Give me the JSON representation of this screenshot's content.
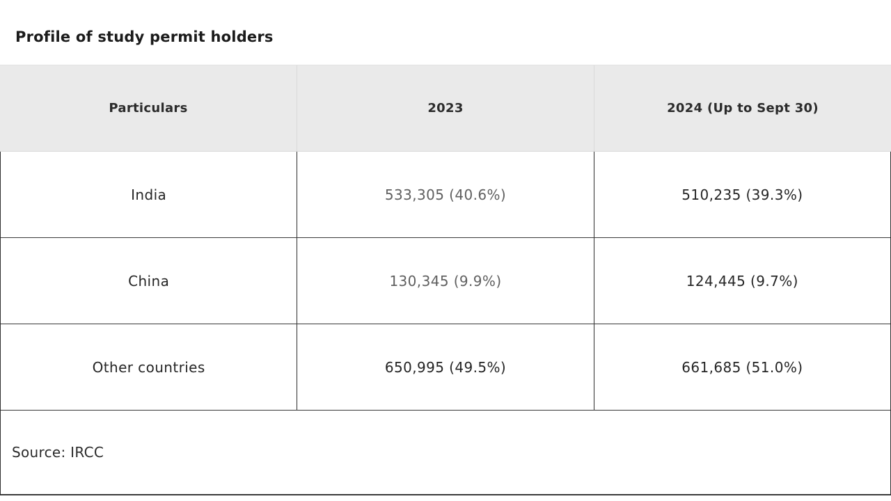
{
  "title": "Profile of study permit holders",
  "colors": {
    "header_bg": "#EAEAEA",
    "header_divider": "#D9D9D9",
    "body_border": "#2E2E2E",
    "text_dark": "#252525",
    "text_muted": "#5F5F5F"
  },
  "table": {
    "headers": [
      "Particulars",
      "2023",
      "2024 (Up to Sept 30)"
    ],
    "rows": [
      {
        "particulars": "India",
        "y2023": "533,305 (40.6%)",
        "y2024": "510,235 (39.3%)"
      },
      {
        "particulars": "China",
        "y2023": "130,345 (9.9%)",
        "y2024": "124,445 (9.7%)"
      },
      {
        "particulars": "Other countries",
        "y2023": "650,995 (49.5%)",
        "y2024": "661,685 (51.0%)"
      }
    ],
    "source": "Source: IRCC"
  },
  "chart_data": {
    "type": "table",
    "title": "Profile of study permit holders",
    "columns": [
      "Particulars",
      "2023",
      "2024 (Up to Sept 30)"
    ],
    "rows": [
      [
        "India",
        "533,305 (40.6%)",
        "510,235 (39.3%)"
      ],
      [
        "China",
        "130,345 (9.9%)",
        "124,445 (9.7%)"
      ],
      [
        "Other countries",
        "650,995 (49.5%)",
        "661,685 (51.0%)"
      ]
    ],
    "source": "Source: IRCC"
  }
}
